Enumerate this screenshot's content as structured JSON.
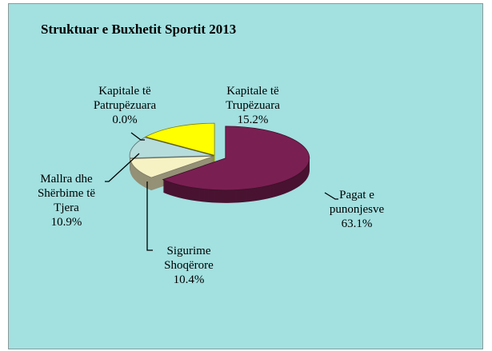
{
  "chart_data": {
    "type": "pie",
    "title": "Struktuar e Buxhetit Sportit  2013",
    "categories": [
      "Pagat e punonjesve",
      "Sigurime Shoqërore",
      "Mallra dhe Shërbime të Tjera",
      "Kapitale të Patrupëzuara",
      "Kapitale të Trupëzuara"
    ],
    "values": [
      63.1,
      10.4,
      10.9,
      0.0,
      15.2
    ],
    "value_labels": [
      "63.1%",
      "10.4%",
      "10.9%",
      "0.0%",
      "15.2%"
    ],
    "colors": [
      "#7a1f52",
      "#f6f2c4",
      "#b6dcdc",
      "#8a7a3a",
      "#ffff00"
    ]
  }
}
